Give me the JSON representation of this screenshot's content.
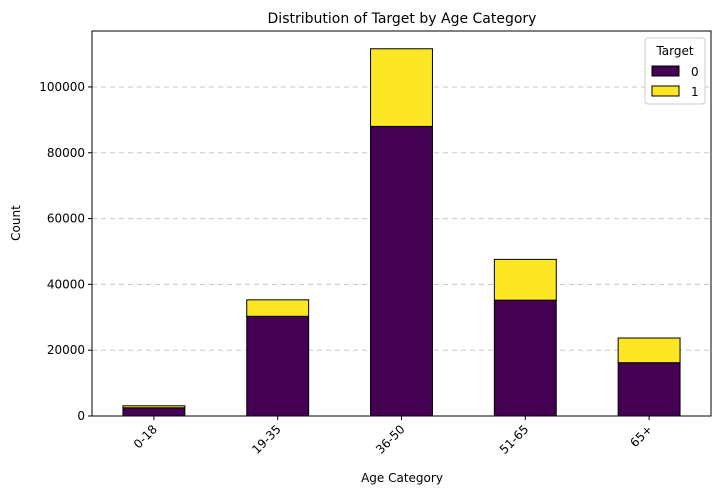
{
  "chart_data": {
    "type": "bar",
    "stacked": true,
    "title": "Distribution of Target by Age Category",
    "xlabel": "Age Category",
    "ylabel": "Count",
    "categories": [
      "0-18",
      "19-35",
      "36-50",
      "51-65",
      "65+"
    ],
    "series": [
      {
        "name": "0",
        "color": "#440154",
        "values": [
          2500,
          30300,
          88000,
          35200,
          16200
        ]
      },
      {
        "name": "1",
        "color": "#fde725",
        "values": [
          600,
          5000,
          23600,
          12400,
          7500
        ]
      }
    ],
    "ylim": [
      0,
      117000
    ],
    "yticks": [
      0,
      20000,
      40000,
      60000,
      80000,
      100000
    ],
    "ytick_labels": [
      "0",
      "20000",
      "40000",
      "60000",
      "80000",
      "100000"
    ],
    "grid": "y, dashed",
    "legend": {
      "title": "Target",
      "position": "top-right"
    }
  }
}
